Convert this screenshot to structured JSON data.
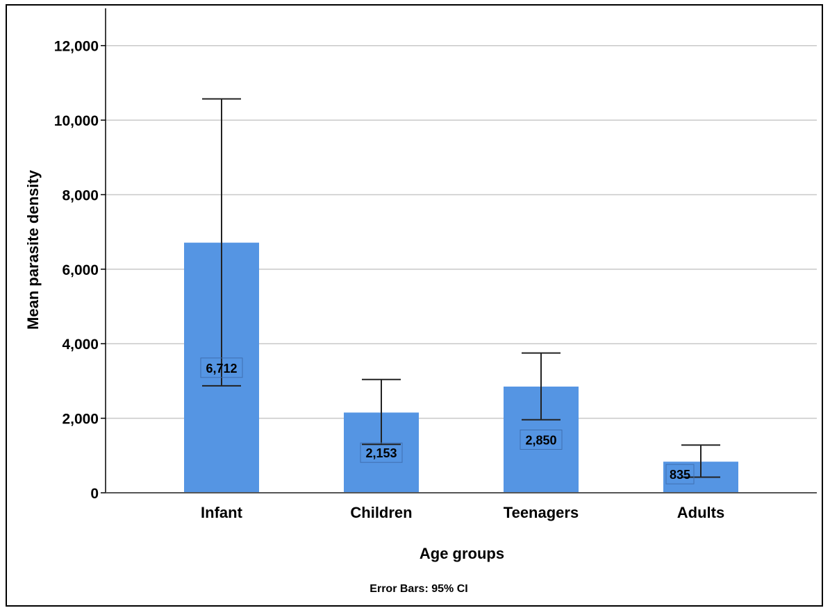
{
  "chart_data": {
    "type": "bar",
    "categories": [
      "Infant",
      "Children",
      "Teenagers",
      "Adults"
    ],
    "values": [
      6712,
      2153,
      2850,
      835
    ],
    "data_labels": [
      "6,712",
      "2,153",
      "2,850",
      "835"
    ],
    "error_bars": {
      "lower": [
        2870,
        1300,
        1960,
        420
      ],
      "upper": [
        10570,
        3040,
        3750,
        1280
      ]
    },
    "xlabel": "Age groups",
    "ylabel": "Mean parasite density",
    "ylim": [
      0,
      13000
    ],
    "yticks": [
      0,
      2000,
      4000,
      6000,
      8000,
      10000,
      12000
    ],
    "ytick_labels": [
      "0",
      "2,000",
      "4,000",
      "6,000",
      "8,000",
      "10,000",
      "12,000"
    ],
    "grid": true,
    "footnote": "Error Bars: 95% CI",
    "colors": {
      "bar": "#5595E3",
      "grid": "#C8C8C8",
      "axis": "#000000"
    }
  }
}
